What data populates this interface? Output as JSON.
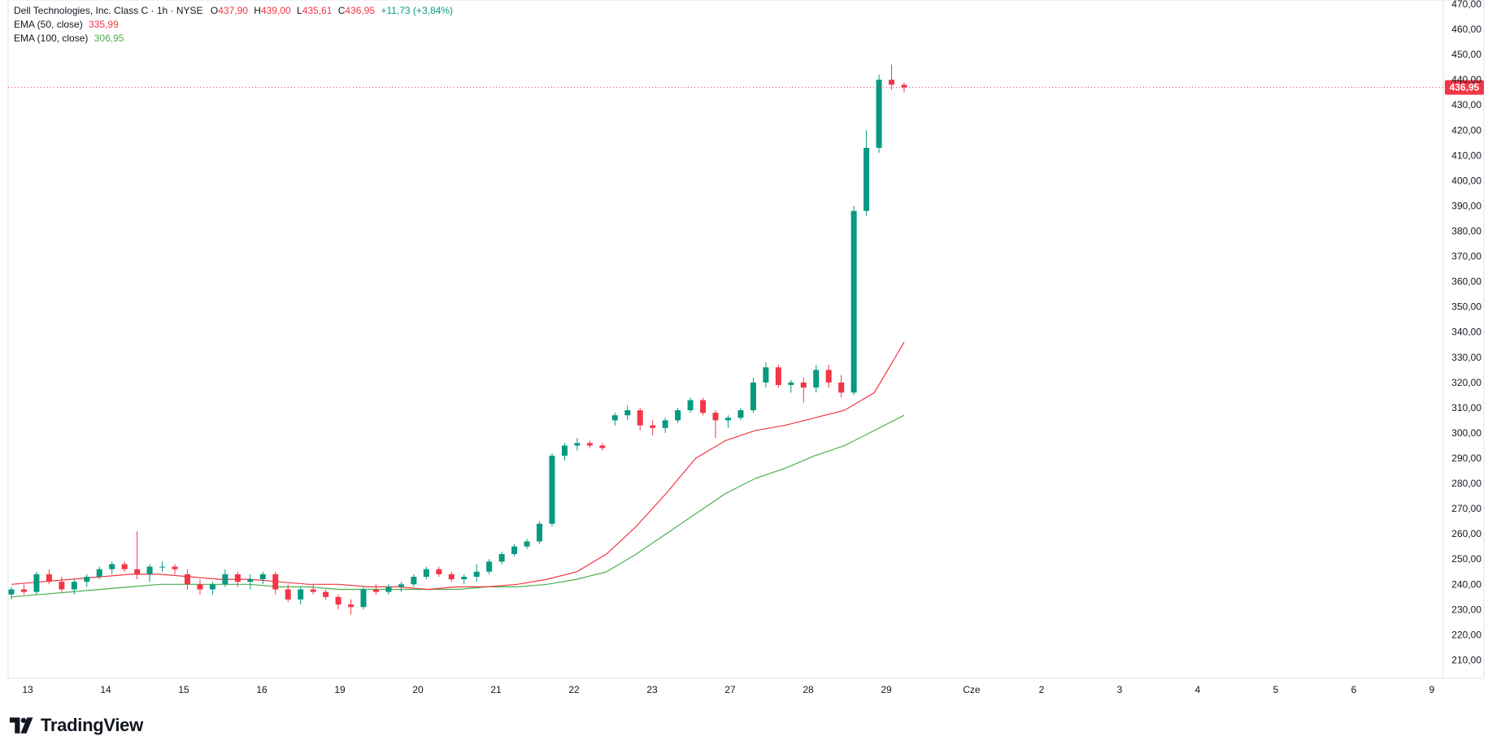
{
  "header": {
    "symbol": "Dell Technologies, Inc. Class C · 1h · NYSE",
    "o_label": "O",
    "o_value": "437,90",
    "h_label": "H",
    "h_value": "439,00",
    "l_label": "L",
    "l_value": "435,61",
    "c_label": "C",
    "c_value": "436,95",
    "change": "+11,73 (+3,84%)"
  },
  "indicators": {
    "ema50_label": "EMA (50, close)",
    "ema50_value": "335,99",
    "ema100_label": "EMA (100, close)",
    "ema100_value": "306,95"
  },
  "brand": {
    "name": "TradingView"
  },
  "colors": {
    "up": "#089981",
    "down": "#f23645",
    "ema50": "#f23645",
    "ema100": "#4caf50",
    "last_price": "#f23645"
  },
  "chart_data": {
    "type": "candlestick",
    "x_ticks": [
      "13",
      "14",
      "15",
      "16",
      "19",
      "20",
      "21",
      "22",
      "23",
      "27",
      "28",
      "29",
      "Cze",
      "2",
      "3",
      "4",
      "5",
      "6",
      "9"
    ],
    "y_ticks": [
      "210,00",
      "220,00",
      "230,00",
      "240,00",
      "250,00",
      "260,00",
      "270,00",
      "280,00",
      "290,00",
      "300,00",
      "310,00",
      "320,00",
      "330,00",
      "340,00",
      "350,00",
      "360,00",
      "370,00",
      "380,00",
      "390,00",
      "400,00",
      "410,00",
      "420,00",
      "430,00",
      "440,00",
      "450,00",
      "460,00",
      "470,00"
    ],
    "ylim": [
      205,
      470
    ],
    "last_price": 436.95,
    "last_price_label": "436,95",
    "candles": [
      [
        236,
        239,
        234,
        238
      ],
      [
        238,
        240,
        236,
        237
      ],
      [
        237,
        245,
        236,
        244
      ],
      [
        244,
        246,
        240,
        241
      ],
      [
        241,
        243,
        237,
        238
      ],
      [
        238,
        242,
        236,
        241
      ],
      [
        241,
        244,
        239,
        243
      ],
      [
        243,
        247,
        242,
        246
      ],
      [
        246,
        249,
        244,
        248
      ],
      [
        248,
        249,
        245,
        246
      ],
      [
        246,
        261,
        242,
        244
      ],
      [
        244,
        248,
        241,
        247
      ],
      [
        247,
        249,
        245,
        247
      ],
      [
        247,
        248,
        244,
        246
      ],
      [
        244,
        246,
        238,
        240
      ],
      [
        240,
        242,
        236,
        238
      ],
      [
        238,
        241,
        236,
        240
      ],
      [
        240,
        246,
        239,
        244
      ],
      [
        244,
        245,
        239,
        241
      ],
      [
        241,
        244,
        238,
        242
      ],
      [
        242,
        245,
        240,
        244
      ],
      [
        244,
        245,
        236,
        238
      ],
      [
        238,
        240,
        233,
        234
      ],
      [
        234,
        239,
        232,
        238
      ],
      [
        238,
        240,
        236,
        237
      ],
      [
        237,
        238,
        234,
        235
      ],
      [
        235,
        236,
        230,
        232
      ],
      [
        232,
        234,
        228,
        231
      ],
      [
        231,
        239,
        230,
        238
      ],
      [
        238,
        240,
        236,
        237
      ],
      [
        237,
        240,
        236,
        239
      ],
      [
        239,
        241,
        237,
        240
      ],
      [
        240,
        244,
        239,
        243
      ],
      [
        243,
        247,
        242,
        246
      ],
      [
        246,
        247,
        243,
        244
      ],
      [
        244,
        245,
        241,
        242
      ],
      [
        242,
        244,
        240,
        243
      ],
      [
        243,
        248,
        241,
        245
      ],
      [
        245,
        250,
        244,
        249
      ],
      [
        249,
        253,
        248,
        252
      ],
      [
        252,
        256,
        251,
        255
      ],
      [
        255,
        258,
        254,
        257
      ],
      [
        257,
        265,
        256,
        264
      ],
      [
        264,
        292,
        263,
        291
      ],
      [
        291,
        296,
        289,
        295
      ],
      [
        295,
        298,
        293,
        296
      ],
      [
        296,
        297,
        294,
        295
      ],
      [
        295,
        296,
        293,
        294
      ],
      [
        305,
        308,
        303,
        307
      ],
      [
        307,
        311,
        305,
        309
      ],
      [
        309,
        310,
        301,
        303
      ],
      [
        303,
        305,
        299,
        302
      ],
      [
        302,
        306,
        300,
        305
      ],
      [
        305,
        310,
        304,
        309
      ],
      [
        309,
        314,
        308,
        313
      ],
      [
        313,
        314,
        307,
        308
      ],
      [
        308,
        309,
        298,
        305
      ],
      [
        305,
        307,
        302,
        306
      ],
      [
        306,
        310,
        305,
        309
      ],
      [
        309,
        322,
        308,
        320
      ],
      [
        320,
        328,
        318,
        326
      ],
      [
        326,
        327,
        318,
        319
      ],
      [
        319,
        321,
        316,
        320
      ],
      [
        320,
        322,
        312,
        318
      ],
      [
        318,
        327,
        316,
        325
      ],
      [
        325,
        327,
        318,
        320
      ],
      [
        320,
        323,
        314,
        316
      ],
      [
        316,
        390,
        315,
        388
      ],
      [
        388,
        420,
        386,
        413
      ],
      [
        413,
        442,
        411,
        440
      ],
      [
        440,
        446,
        436,
        438
      ],
      [
        438,
        439,
        435,
        437
      ]
    ],
    "ema50": [
      240,
      241,
      242,
      243,
      244,
      244,
      243,
      242,
      242,
      241,
      240,
      240,
      239,
      239,
      238,
      239,
      239,
      240,
      242,
      245,
      252,
      263,
      276,
      290,
      297,
      301,
      303,
      306,
      309,
      316,
      336
    ],
    "ema100": [
      235,
      236,
      237,
      238,
      239,
      240,
      240,
      240,
      240,
      239,
      239,
      238,
      238,
      238,
      238,
      238,
      239,
      239,
      240,
      242,
      245,
      252,
      260,
      268,
      276,
      282,
      286,
      291,
      295,
      301,
      307
    ]
  }
}
